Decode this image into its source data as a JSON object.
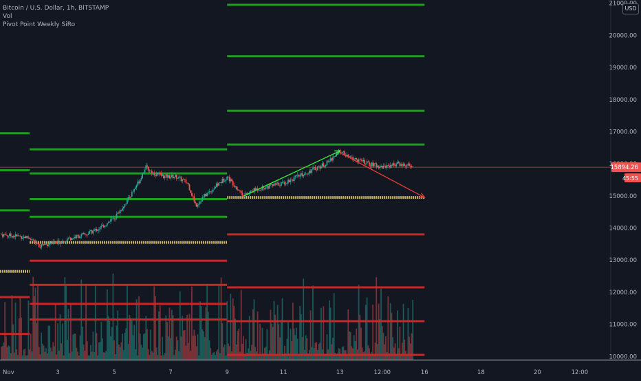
{
  "legend": {
    "symbol": "Bitcoin / U.S. Dollar, 1h, BITSTAMP",
    "volume": "Vol",
    "indicator": "Pivot Point Weekly SiRo"
  },
  "currency_button": "USD",
  "price_badge": {
    "price": "15894.26",
    "countdown": "45:55"
  },
  "colors": {
    "background": "#131722",
    "resistance": "#1e9e1e",
    "support": "#c62828",
    "pivot": "#c9b46a",
    "up_candle": "#26a69a",
    "down_candle": "#ef5350",
    "current_price": "#ef5350",
    "up_arrow": "#39e639",
    "down_arrow": "#e53935"
  },
  "chart_data": {
    "type": "candlestick",
    "interval": "1h",
    "x_axis": {
      "type": "date",
      "ticks": [
        {
          "label": "Nov",
          "day": 1
        },
        {
          "label": "3",
          "day": 3
        },
        {
          "label": "5",
          "day": 5
        },
        {
          "label": "7",
          "day": 7
        },
        {
          "label": "9",
          "day": 9
        },
        {
          "label": "11",
          "day": 11
        },
        {
          "label": "13",
          "day": 13
        },
        {
          "label": "12:00",
          "day": 14.5
        },
        {
          "label": "16",
          "day": 16
        },
        {
          "label": "18",
          "day": 18
        },
        {
          "label": "20",
          "day": 20
        },
        {
          "label": "12:00",
          "day": 21.5
        }
      ],
      "range_days": [
        0.95,
        22.6
      ]
    },
    "y_axis": {
      "ticks": [
        10000,
        11000,
        12000,
        13000,
        14000,
        15000,
        16000,
        17000,
        18000,
        19000,
        20000,
        21000
      ],
      "tick_labels": [
        "10000.00",
        "11000.00",
        "12000.00",
        "13000.00",
        "14000.00",
        "15000.00",
        "16000.00",
        "17000.00",
        "18000.00",
        "19000.00",
        "20000.00",
        "21000.00"
      ],
      "range": [
        9900,
        21100
      ]
    },
    "current_price": 15894.26,
    "price_path": [
      [
        1.0,
        13800
      ],
      [
        1.5,
        13750
      ],
      [
        2.0,
        13700
      ],
      [
        2.3,
        13450
      ],
      [
        2.6,
        13500
      ],
      [
        3.0,
        13550
      ],
      [
        3.5,
        13700
      ],
      [
        4.0,
        13800
      ],
      [
        4.5,
        14000
      ],
      [
        5.0,
        14300
      ],
      [
        5.5,
        14900
      ],
      [
        5.9,
        15500
      ],
      [
        6.1,
        15900
      ],
      [
        6.4,
        15700
      ],
      [
        6.8,
        15600
      ],
      [
        7.2,
        15600
      ],
      [
        7.6,
        15400
      ],
      [
        7.9,
        14700
      ],
      [
        8.2,
        15000
      ],
      [
        8.6,
        15300
      ],
      [
        9.0,
        15600
      ],
      [
        9.3,
        15300
      ],
      [
        9.6,
        15000
      ],
      [
        10.0,
        15200
      ],
      [
        10.5,
        15300
      ],
      [
        11.0,
        15400
      ],
      [
        11.5,
        15600
      ],
      [
        12.0,
        15800
      ],
      [
        12.5,
        16000
      ],
      [
        13.0,
        16400
      ],
      [
        13.3,
        16200
      ],
      [
        13.7,
        16100
      ],
      [
        14.0,
        16000
      ],
      [
        14.5,
        15900
      ],
      [
        15.0,
        16000
      ],
      [
        15.4,
        15950
      ],
      [
        15.6,
        15894
      ]
    ],
    "pivot_weeks": [
      {
        "start": 0.95,
        "end": 2.0,
        "levels": [
          {
            "kind": "R",
            "value": 16950
          },
          {
            "kind": "R",
            "value": 15800
          },
          {
            "kind": "R",
            "value": 14550
          },
          {
            "kind": "P",
            "value": 12650
          },
          {
            "kind": "S",
            "value": 11850
          },
          {
            "kind": "S",
            "value": 10700
          }
        ]
      },
      {
        "start": 2.0,
        "end": 9.0,
        "levels": [
          {
            "kind": "R",
            "value": 16450
          },
          {
            "kind": "R",
            "value": 15700
          },
          {
            "kind": "R",
            "value": 14900
          },
          {
            "kind": "R",
            "value": 14350
          },
          {
            "kind": "P",
            "value": 13550
          },
          {
            "kind": "S",
            "value": 12980
          },
          {
            "kind": "S",
            "value": 12230
          },
          {
            "kind": "S",
            "value": 11640
          },
          {
            "kind": "S",
            "value": 11150
          }
        ]
      },
      {
        "start": 9.0,
        "end": 16.0,
        "levels": [
          {
            "kind": "R",
            "value": 20950
          },
          {
            "kind": "R",
            "value": 19350
          },
          {
            "kind": "R",
            "value": 17650
          },
          {
            "kind": "R",
            "value": 16600
          },
          {
            "kind": "P",
            "value": 14950
          },
          {
            "kind": "S",
            "value": 13800
          },
          {
            "kind": "S",
            "value": 12150
          },
          {
            "kind": "S",
            "value": 11100
          },
          {
            "kind": "S",
            "value": 10050
          }
        ]
      }
    ],
    "arrows": [
      {
        "name": "uptrend-arrow",
        "from": [
          9.6,
          15000
        ],
        "to": [
          13.0,
          16400
        ],
        "color": "up_arrow"
      },
      {
        "name": "downtrend-arrow",
        "from": [
          13.1,
          16300
        ],
        "to": [
          16.0,
          14950
        ],
        "color": "down_arrow"
      }
    ]
  }
}
